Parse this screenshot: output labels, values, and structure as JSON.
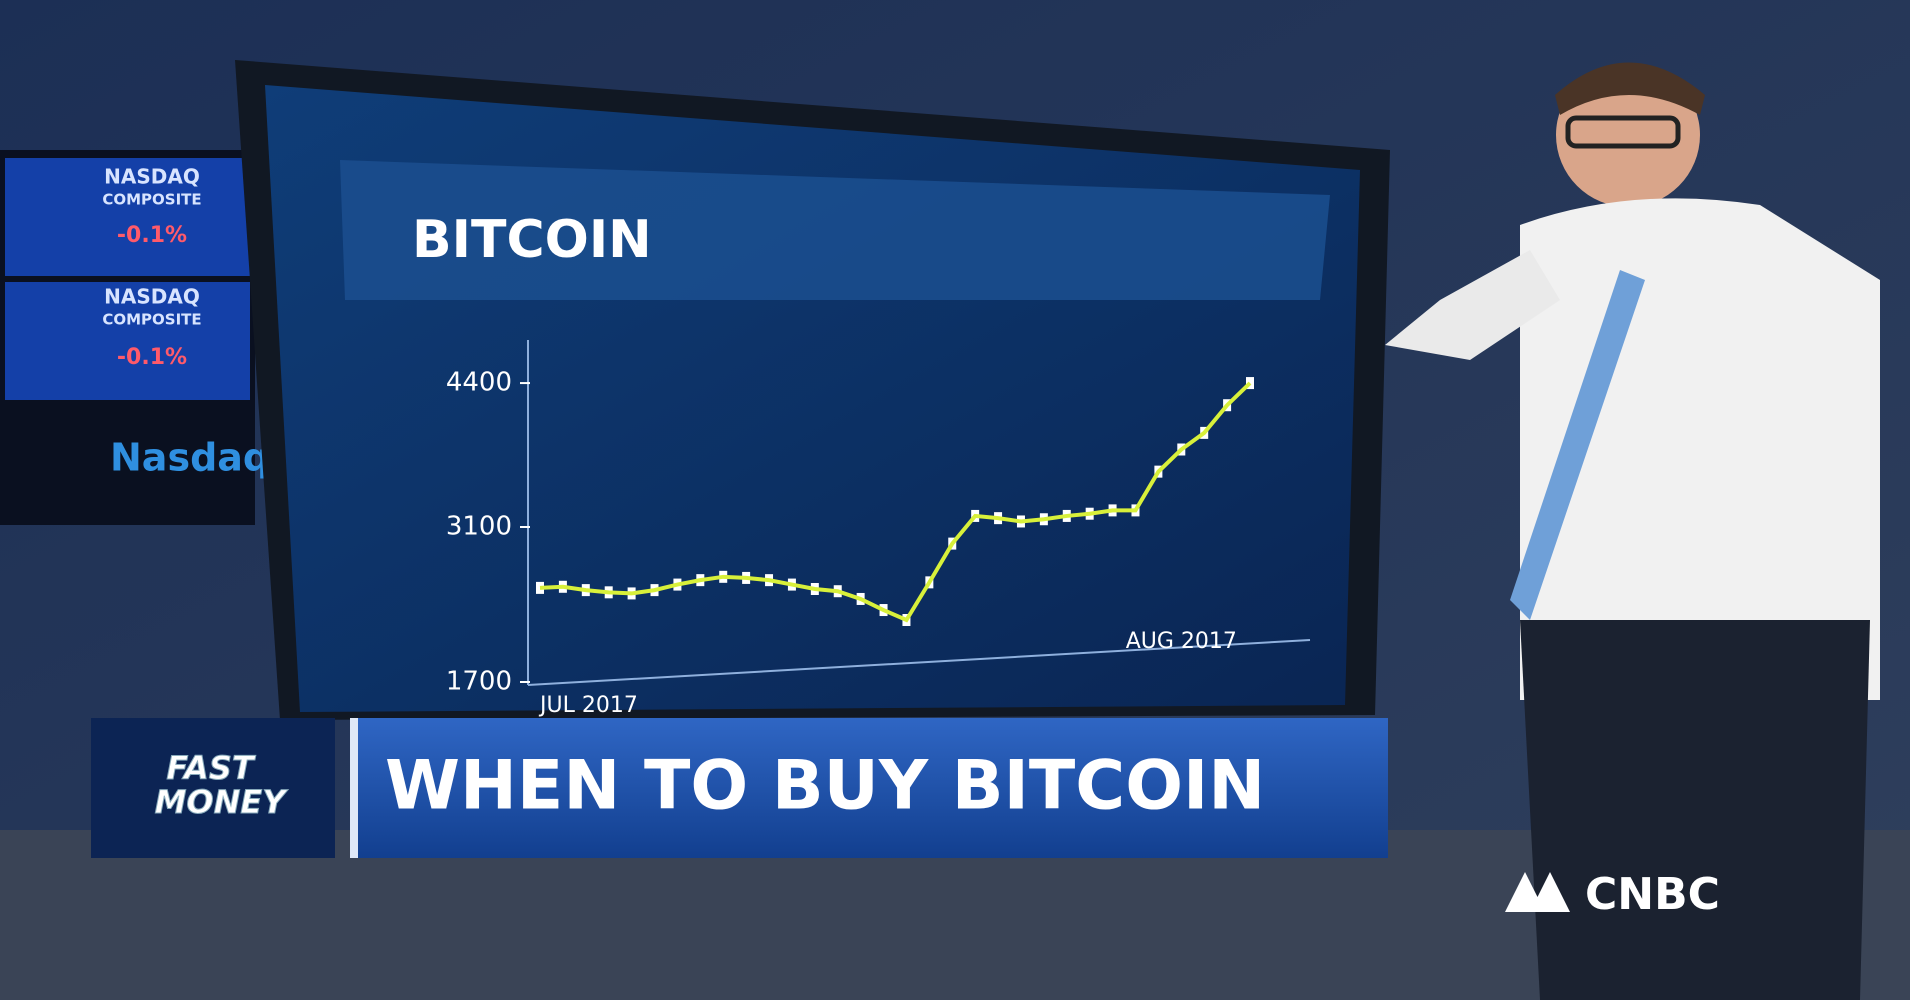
{
  "chart_data": {
    "type": "line",
    "title": "BITCOIN",
    "categories": [
      "JUL 2017",
      null,
      null,
      null,
      null,
      null,
      null,
      null,
      null,
      null,
      null,
      null,
      null,
      null,
      null,
      null,
      null,
      null,
      null,
      null,
      null,
      null,
      null,
      null,
      null,
      null,
      null,
      null,
      "AUG 2017",
      null,
      null,
      null
    ],
    "series": [
      {
        "name": "Bitcoin",
        "color": "#d8f03a",
        "values": [
          2550,
          2560,
          2530,
          2510,
          2500,
          2530,
          2580,
          2620,
          2650,
          2640,
          2620,
          2580,
          2540,
          2520,
          2450,
          2350,
          2260,
          2600,
          2950,
          3200,
          3180,
          3150,
          3170,
          3200,
          3220,
          3250,
          3250,
          3600,
          3800,
          3950,
          4200,
          4400
        ]
      }
    ],
    "ylim": [
      1700,
      4500
    ],
    "yticks": [
      1700,
      3100,
      4400
    ]
  },
  "background": {
    "tickers": [
      {
        "name": "NASDAQ",
        "sub": "COMPOSITE",
        "change": "-0.1%"
      },
      {
        "name": "NASDAQ",
        "sub": "COMPOSITE",
        "change": "-0.1%"
      }
    ],
    "logo": "Nasdaq"
  },
  "banner": {
    "show": [
      "FAST",
      "MONEY"
    ],
    "headline": "WHEN TO BUY BITCOIN",
    "network": "CNBC"
  }
}
